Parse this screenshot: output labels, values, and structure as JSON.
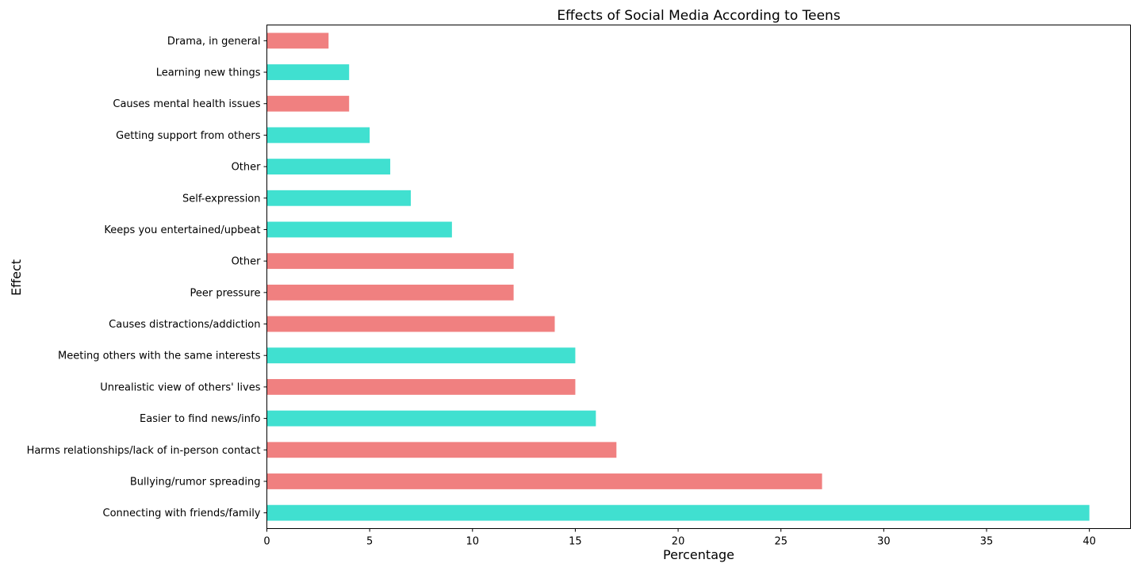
{
  "chart_data": {
    "type": "bar",
    "orientation": "horizontal",
    "title": "Effects of Social Media According to Teens",
    "xlabel": "Percentage",
    "ylabel": "Effect",
    "xlim": [
      0,
      42
    ],
    "xticks": [
      0,
      5,
      10,
      15,
      20,
      25,
      30,
      35,
      40
    ],
    "grid": false,
    "colors": {
      "positive": "#40E0D0",
      "negative": "#F08080"
    },
    "categories": [
      "Connecting with friends/family",
      "Bullying/rumor spreading",
      "Harms relationships/lack of in-person contact",
      "Easier to find news/info",
      "Unrealistic view of others' lives",
      "Meeting others with the same interests",
      "Causes distractions/addiction",
      "Peer pressure",
      "Other",
      "Keeps you entertained/upbeat",
      "Self-expression",
      "Other",
      "Getting support from others",
      "Causes mental health issues",
      "Learning new things",
      "Drama, in general"
    ],
    "values": [
      40,
      27,
      17,
      16,
      15,
      15,
      14,
      12,
      12,
      9,
      7,
      6,
      5,
      4,
      4,
      3
    ],
    "effect_type": [
      "positive",
      "negative",
      "negative",
      "positive",
      "negative",
      "positive",
      "negative",
      "negative",
      "negative",
      "positive",
      "positive",
      "positive",
      "positive",
      "negative",
      "positive",
      "negative"
    ]
  }
}
